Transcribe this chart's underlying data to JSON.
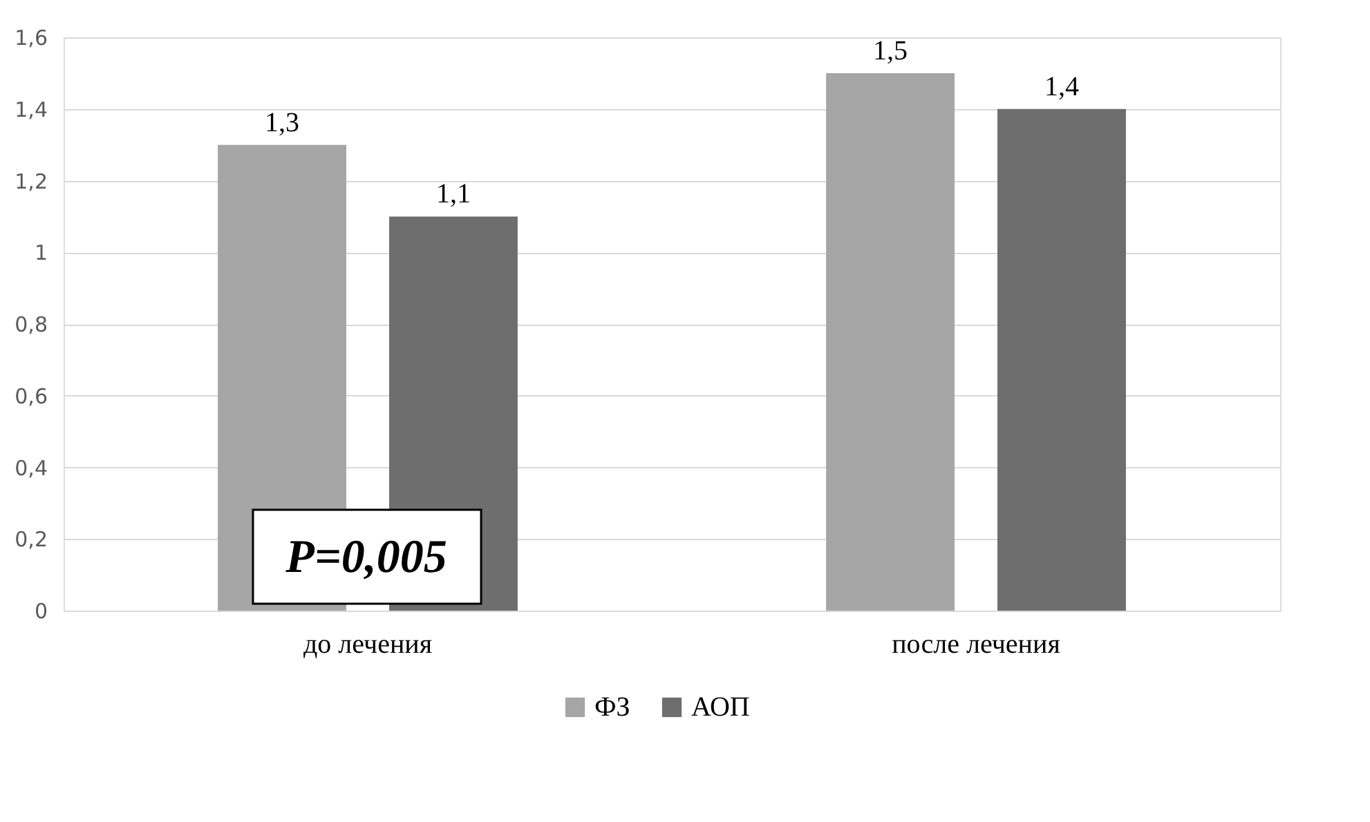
{
  "chart_data": {
    "type": "bar",
    "categories": [
      "до лечения",
      "после лечения"
    ],
    "series": [
      {
        "name": "ФЗ",
        "color": "#a6a6a6",
        "values": [
          1.3,
          1.5
        ],
        "value_labels": [
          "1,3",
          "1,5"
        ]
      },
      {
        "name": "АОП",
        "color": "#6e6e6e",
        "values": [
          1.1,
          1.4
        ],
        "value_labels": [
          "1,1",
          "1,4"
        ]
      }
    ],
    "ylim": [
      0,
      1.6
    ],
    "yticks": [
      0,
      {
        "value": 0.2,
        "label": "0,2"
      },
      {
        "value": 0.4,
        "label": "0,4"
      },
      {
        "value": 0.6,
        "label": "0,6"
      },
      {
        "value": 0.8,
        "label": "0,8"
      },
      1,
      {
        "value": 1.2,
        "label": "1,2"
      },
      {
        "value": 1.4,
        "label": "1,4"
      },
      {
        "value": 1.6,
        "label": "1,6"
      }
    ],
    "grid": "y",
    "legend": "bottom",
    "annotations": [
      "P=0,005"
    ]
  }
}
